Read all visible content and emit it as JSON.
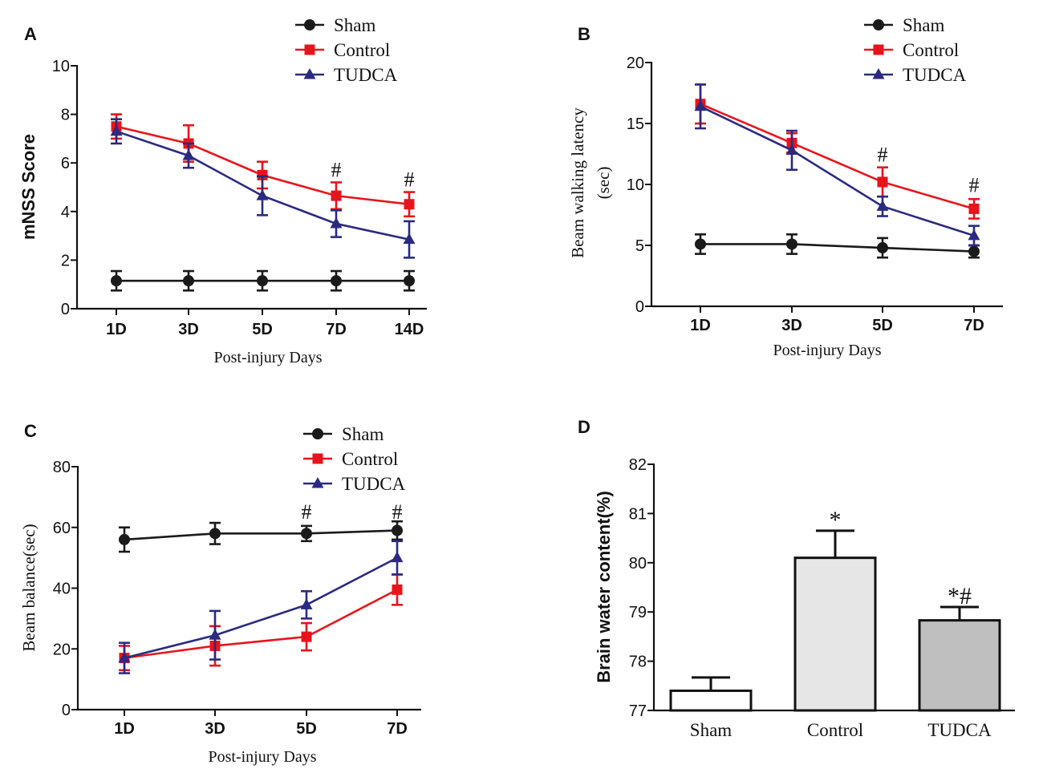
{
  "colors": {
    "sham": "#1a1a1a",
    "control": "#e8141c",
    "tudca": "#2b2a80",
    "bar_sham": "#ffffff",
    "bar_control": "#e6e6e6",
    "bar_tudca": "#bfbfbf"
  },
  "chart_data": [
    {
      "panel": "A",
      "type": "line",
      "ylabel": "mNSS Score",
      "xlabel": "Post-injury Days",
      "categories": [
        "1D",
        "3D",
        "5D",
        "7D",
        "14D"
      ],
      "ylim": [
        0,
        10
      ],
      "yticks": [
        0,
        2,
        4,
        6,
        8,
        10
      ],
      "legend": [
        "Sham",
        "Control",
        "TUDCA"
      ],
      "legend_position": "top-right",
      "series": [
        {
          "name": "Sham",
          "marker": "circle",
          "values": [
            1.15,
            1.15,
            1.15,
            1.15,
            1.15
          ],
          "errors": [
            0.4,
            0.4,
            0.4,
            0.4,
            0.4
          ]
        },
        {
          "name": "Control",
          "marker": "square",
          "values": [
            7.5,
            6.8,
            5.5,
            4.65,
            4.3
          ],
          "errors": [
            0.5,
            0.75,
            0.55,
            0.55,
            0.5
          ]
        },
        {
          "name": "TUDCA",
          "marker": "triangle",
          "values": [
            7.3,
            6.3,
            4.65,
            3.5,
            2.85
          ],
          "errors": [
            0.5,
            0.5,
            0.8,
            0.55,
            0.75
          ]
        }
      ],
      "annotations": [
        {
          "category": "7D",
          "text": "#",
          "y": 5.7
        },
        {
          "category": "14D",
          "text": "#",
          "y": 5.3
        }
      ]
    },
    {
      "panel": "B",
      "type": "line",
      "ylabel": "Beam walking latency",
      "ylabel2": "(sec)",
      "xlabel": "Post-injury Days",
      "categories": [
        "1D",
        "3D",
        "5D",
        "7D"
      ],
      "ylim": [
        0,
        20
      ],
      "yticks": [
        0,
        5,
        10,
        15,
        20
      ],
      "legend": [
        "Sham",
        "Control",
        "TUDCA"
      ],
      "legend_position": "top-right",
      "series": [
        {
          "name": "Sham",
          "marker": "circle",
          "values": [
            5.1,
            5.1,
            4.8,
            4.5
          ],
          "errors": [
            0.8,
            0.8,
            0.8,
            0.5
          ]
        },
        {
          "name": "Control",
          "marker": "square",
          "values": [
            16.6,
            13.4,
            10.2,
            8.0
          ],
          "errors": [
            1.6,
            0.8,
            1.2,
            0.8
          ]
        },
        {
          "name": "TUDCA",
          "marker": "triangle",
          "values": [
            16.4,
            12.8,
            8.2,
            5.8
          ],
          "errors": [
            1.8,
            1.6,
            0.8,
            0.8
          ]
        }
      ],
      "annotations": [
        {
          "category": "5D",
          "text": "#",
          "y": 12.4
        },
        {
          "category": "7D",
          "text": "#",
          "y": 9.9
        }
      ]
    },
    {
      "panel": "C",
      "type": "line",
      "ylabel": "Beam balance(sec)",
      "xlabel": "Post-injury Days",
      "categories": [
        "1D",
        "3D",
        "5D",
        "7D"
      ],
      "ylim": [
        0,
        80
      ],
      "yticks": [
        0,
        20,
        40,
        60,
        80
      ],
      "legend": [
        "Sham",
        "Control",
        "TUDCA"
      ],
      "legend_position": "top-right",
      "series": [
        {
          "name": "Sham",
          "marker": "circle",
          "values": [
            56,
            58,
            58,
            59
          ],
          "errors": [
            4,
            3.5,
            2.5,
            3
          ]
        },
        {
          "name": "Control",
          "marker": "square",
          "values": [
            17,
            21,
            24,
            39.5
          ],
          "errors": [
            4,
            6.5,
            4.5,
            5
          ]
        },
        {
          "name": "TUDCA",
          "marker": "triangle",
          "values": [
            17,
            24.5,
            34.5,
            50
          ],
          "errors": [
            5,
            8,
            4.5,
            5.5
          ]
        }
      ],
      "annotations": [
        {
          "category": "5D",
          "text": "#",
          "y": 65
        },
        {
          "category": "7D",
          "text": "#",
          "y": 65
        }
      ]
    },
    {
      "panel": "D",
      "type": "bar",
      "ylabel": "Brain water content(%)",
      "categories": [
        "Sham",
        "Control",
        "TUDCA"
      ],
      "values": [
        77.4,
        80.1,
        78.83
      ],
      "errors": [
        0.27,
        0.55,
        0.27
      ],
      "ylim": [
        77,
        82
      ],
      "yticks": [
        77,
        78,
        79,
        80,
        81,
        82
      ],
      "annotations": [
        {
          "category": "Control",
          "text": "*"
        },
        {
          "category": "TUDCA",
          "text": "*#"
        }
      ]
    }
  ]
}
